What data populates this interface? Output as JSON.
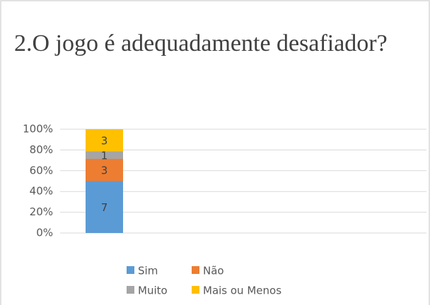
{
  "chart_data": {
    "type": "bar",
    "stacked": true,
    "percent_stacked": true,
    "title": "2.O jogo é adequadamente desafiador?",
    "categories": [
      null
    ],
    "series": [
      {
        "name": "Sim",
        "color": "#5b9bd5",
        "values": [
          7
        ]
      },
      {
        "name": "Não",
        "color": "#ed7d31",
        "values": [
          3
        ]
      },
      {
        "name": "Muito",
        "color": "#a5a5a5",
        "values": [
          1
        ]
      },
      {
        "name": "Mais ou Menos",
        "color": "#ffc000",
        "values": [
          3
        ]
      }
    ],
    "ylim": [
      0,
      100
    ],
    "yticks": [
      {
        "value": 0,
        "label": "0%"
      },
      {
        "value": 20,
        "label": "20%"
      },
      {
        "value": 40,
        "label": "40%"
      },
      {
        "value": 60,
        "label": "60%"
      },
      {
        "value": 80,
        "label": "80%"
      },
      {
        "value": 100,
        "label": "100%"
      }
    ],
    "grid": true,
    "legend": "bottom"
  }
}
